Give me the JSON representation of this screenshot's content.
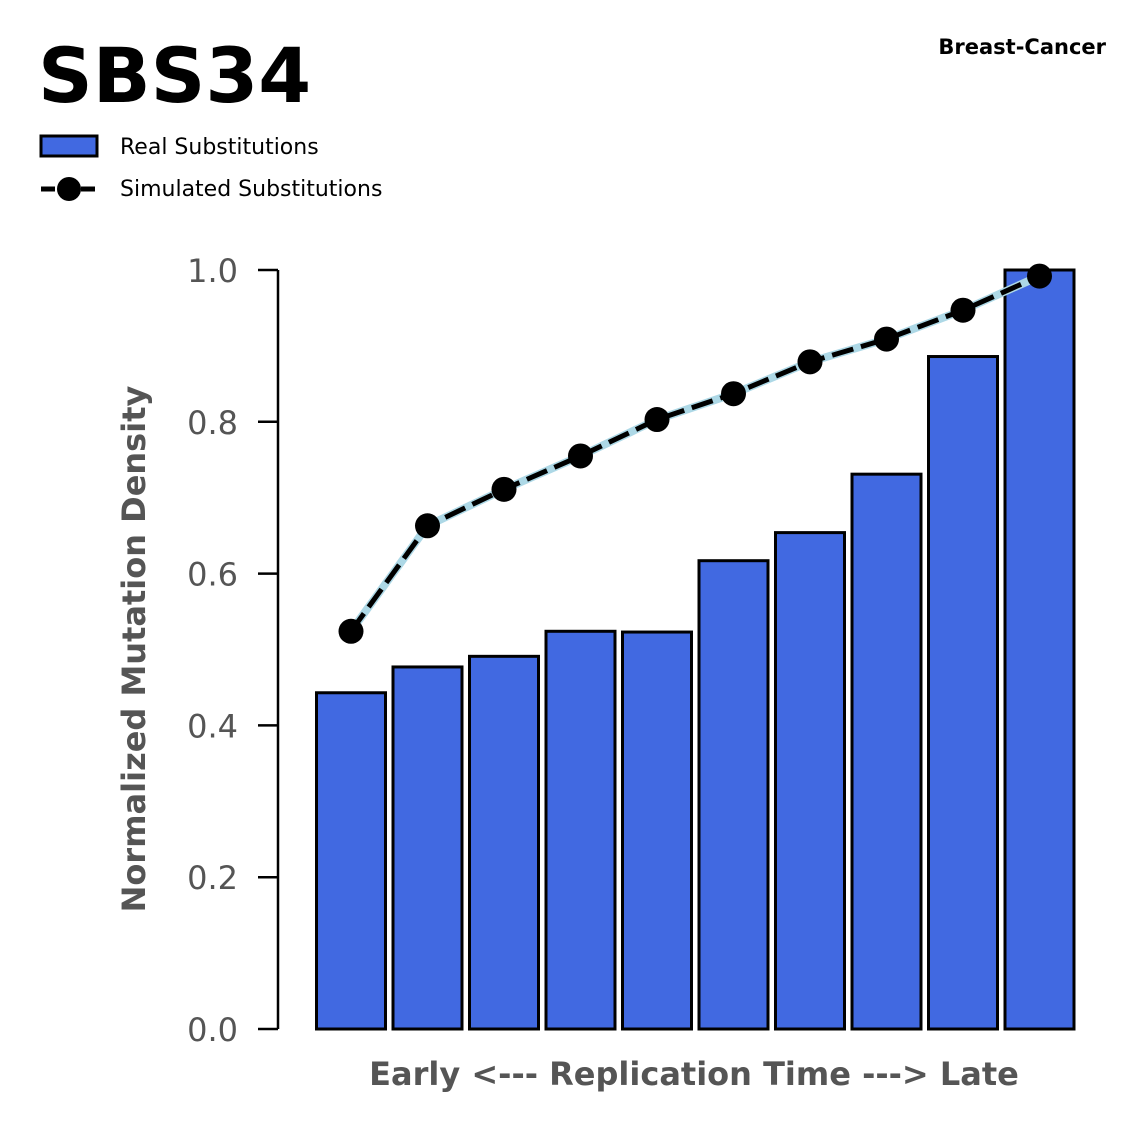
{
  "title": "SBS34",
  "subtitle": "Breast-Cancer",
  "legend": {
    "real_label": "Real Substitutions",
    "simulated_label": "Simulated Substitutions"
  },
  "colors": {
    "bar_fill": "#4169E1",
    "bar_edge": "#000000",
    "sim_line": "#000000",
    "sim_line_under": "#ADD8E6",
    "axis_text": "#555555"
  },
  "chart_data": {
    "type": "bar",
    "xlabel": "Early <--- Replication Time ---> Late",
    "ylabel": "Normalized Mutation Density",
    "ylim": [
      0,
      1.0
    ],
    "yticks": [
      "0.0",
      "0.2",
      "0.4",
      "0.6",
      "0.8",
      "1.0"
    ],
    "grid": false,
    "legend_position": "top-left",
    "series": [
      {
        "name": "Real Substitutions",
        "type": "bar",
        "values": [
          0.443,
          0.477,
          0.491,
          0.524,
          0.523,
          0.617,
          0.654,
          0.731,
          0.886,
          1.0
        ]
      },
      {
        "name": "Simulated Substitutions",
        "type": "line",
        "values": [
          0.524,
          0.663,
          0.711,
          0.755,
          0.803,
          0.837,
          0.879,
          0.909,
          0.947,
          0.992
        ]
      }
    ]
  }
}
